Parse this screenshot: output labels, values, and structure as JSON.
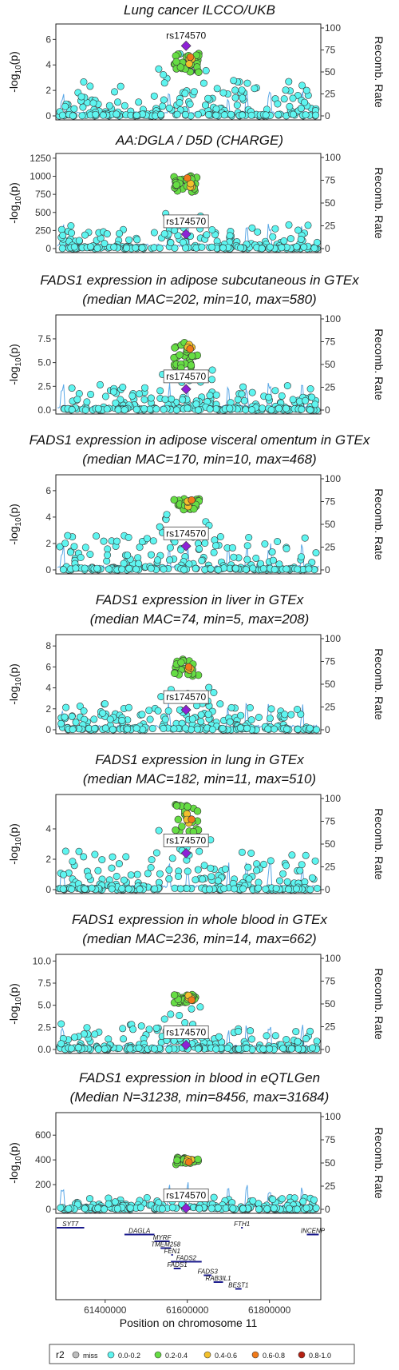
{
  "chart_data": {
    "type": "scatter",
    "x_axis": {
      "label": "Position on chromosome 11",
      "range": [
        61280000,
        61925000
      ],
      "ticks": [
        61400000,
        61600000,
        61800000
      ],
      "tick_labels": [
        "61400000",
        "61600000",
        "61800000"
      ]
    },
    "lead_snp": {
      "label": "rs174570",
      "position": 61597000
    },
    "y_left_label": "-log10(p)",
    "y_right_label": "Recomb. Rate",
    "y_right_range": [
      0,
      100
    ],
    "y_right_ticks": [
      0,
      25,
      50,
      75,
      100
    ],
    "legend": {
      "title": "r2",
      "placement": "bottom",
      "items": [
        {
          "label": "miss",
          "color": "#bdbdbd"
        },
        {
          "label": "0.0-0.2",
          "color": "#5ef5f0"
        },
        {
          "label": "0.2-0.4",
          "color": "#66dd44"
        },
        {
          "label": "0.4-0.6",
          "color": "#f2c02c"
        },
        {
          "label": "0.6-0.8",
          "color": "#f07a1a"
        },
        {
          "label": "0.8-1.0",
          "color": "#b52012"
        }
      ]
    },
    "lead_color": "#8e21d6",
    "recomb_color": "#5aa7e6",
    "panels": [
      {
        "title_lines": [
          "Lung cancer ILCCO/UKB"
        ],
        "ylim": [
          0,
          6.9
        ],
        "yticks": [
          0,
          2,
          4,
          6
        ],
        "ytick_labels": [
          "0",
          "2",
          "4",
          "6"
        ],
        "lead_value": 5.5,
        "green_band": [
          3.4,
          4.9
        ],
        "background_peak": 2.8,
        "lead_label_pos": "above",
        "seed": 11
      },
      {
        "title_lines": [
          "AA:DGLA / D5D (CHARGE)"
        ],
        "ylim": [
          0,
          1260
        ],
        "yticks": [
          0,
          250,
          500,
          750,
          1000,
          1250
        ],
        "ytick_labels": [
          "0",
          "250",
          "500",
          "750",
          "1000",
          "1250"
        ],
        "lead_value": 200,
        "green_band": [
          780,
          1010
        ],
        "background_peak": 330,
        "lead_label_pos": "boxed",
        "seed": 23
      },
      {
        "title_lines": [
          "FADS1 expression in adipose subcutaneous in GTEx",
          "(median MAC=202, min=10, max=580)"
        ],
        "ylim": [
          0,
          9.6
        ],
        "yticks": [
          0,
          2.5,
          5,
          7.5
        ],
        "ytick_labels": [
          "0.0",
          "2.5",
          "5.0",
          "7.5"
        ],
        "lead_value": 2.2,
        "green_band": [
          4.4,
          7.2
        ],
        "background_peak": 2.7,
        "lead_label_pos": "boxed",
        "seed": 37
      },
      {
        "title_lines": [
          "FADS1 expression in adipose visceral omentum in GTEx",
          "(median MAC=170, min=10, max=468)"
        ],
        "ylim": [
          0,
          6.9
        ],
        "yticks": [
          0,
          2,
          4,
          6
        ],
        "ytick_labels": [
          "0",
          "2",
          "4",
          "6"
        ],
        "lead_value": 1.8,
        "green_band": [
          4.5,
          5.4
        ],
        "background_peak": 2.6,
        "lead_label_pos": "boxed",
        "seed": 41
      },
      {
        "title_lines": [
          "FADS1 expression in liver in GTEx",
          "(median MAC=74, min=5, max=208)"
        ],
        "ylim": [
          0,
          8.7
        ],
        "yticks": [
          0,
          2,
          4,
          6,
          8
        ],
        "ytick_labels": [
          "0",
          "2",
          "4",
          "6",
          "8"
        ],
        "lead_value": 1.9,
        "green_band": [
          5.1,
          6.8
        ],
        "background_peak": 2.5,
        "lead_label_pos": "boxed",
        "seed": 53
      },
      {
        "title_lines": [
          "FADS1 expression in lung in GTEx",
          "(median MAC=182, min=11, max=510)"
        ],
        "ylim": [
          0,
          6.0
        ],
        "yticks": [
          0,
          2,
          4
        ],
        "ytick_labels": [
          "0",
          "2",
          "4"
        ],
        "lead_value": 2.4,
        "green_band": [
          3.8,
          5.6
        ],
        "background_peak": 2.6,
        "lead_label_pos": "boxed",
        "seed": 67
      },
      {
        "title_lines": [
          "FADS1 expression in whole blood in GTEx",
          "(median MAC=236, min=14, max=662)"
        ],
        "ylim": [
          0,
          10.3
        ],
        "yticks": [
          0,
          2.5,
          5,
          7.5,
          10
        ],
        "ytick_labels": [
          "0.0",
          "2.5",
          "5.0",
          "7.5",
          "10.0"
        ],
        "lead_value": 0.5,
        "green_band": [
          5.2,
          6.3
        ],
        "background_peak": 2.9,
        "lead_label_pos": "boxed",
        "seed": 79
      },
      {
        "title_lines": [
          "FADS1 expression in blood in eQTLGen",
          "(Median N=31238, min=8456, max=31684)"
        ],
        "ylim": [
          0,
          750
        ],
        "yticks": [
          0,
          200,
          400,
          600
        ],
        "ytick_labels": [
          "0",
          "200",
          "400",
          "600"
        ],
        "lead_value": 10,
        "green_band": [
          360,
          420
        ],
        "background_peak": 95,
        "lead_label_pos": "boxed",
        "seed": 97
      }
    ],
    "genes": [
      {
        "name": "SYT7",
        "start": 61282000,
        "end": 61349000,
        "row": 0
      },
      {
        "name": "DAGLA",
        "start": 61447000,
        "end": 61520000,
        "row": 1
      },
      {
        "name": "MYRF",
        "start": 61520000,
        "end": 61557000,
        "row": 2
      },
      {
        "name": "TMEM258",
        "start": 61535000,
        "end": 61560000,
        "row": 3
      },
      {
        "name": "FEN1",
        "start": 61561000,
        "end": 61565000,
        "row": 4
      },
      {
        "name": "FADS2",
        "start": 61560000,
        "end": 61635000,
        "row": 5
      },
      {
        "name": "FADS1",
        "start": 61567000,
        "end": 61584000,
        "row": 6
      },
      {
        "name": "FADS3",
        "start": 61640000,
        "end": 61659000,
        "row": 7
      },
      {
        "name": "RAB3IL1",
        "start": 61664000,
        "end": 61687000,
        "row": 8
      },
      {
        "name": "BEST1",
        "start": 61717000,
        "end": 61732000,
        "row": 9
      },
      {
        "name": "FTH1",
        "start": 61731000,
        "end": 61735000,
        "row": 0
      },
      {
        "name": "INCENP",
        "start": 61891000,
        "end": 61920000,
        "row": 1
      }
    ]
  }
}
